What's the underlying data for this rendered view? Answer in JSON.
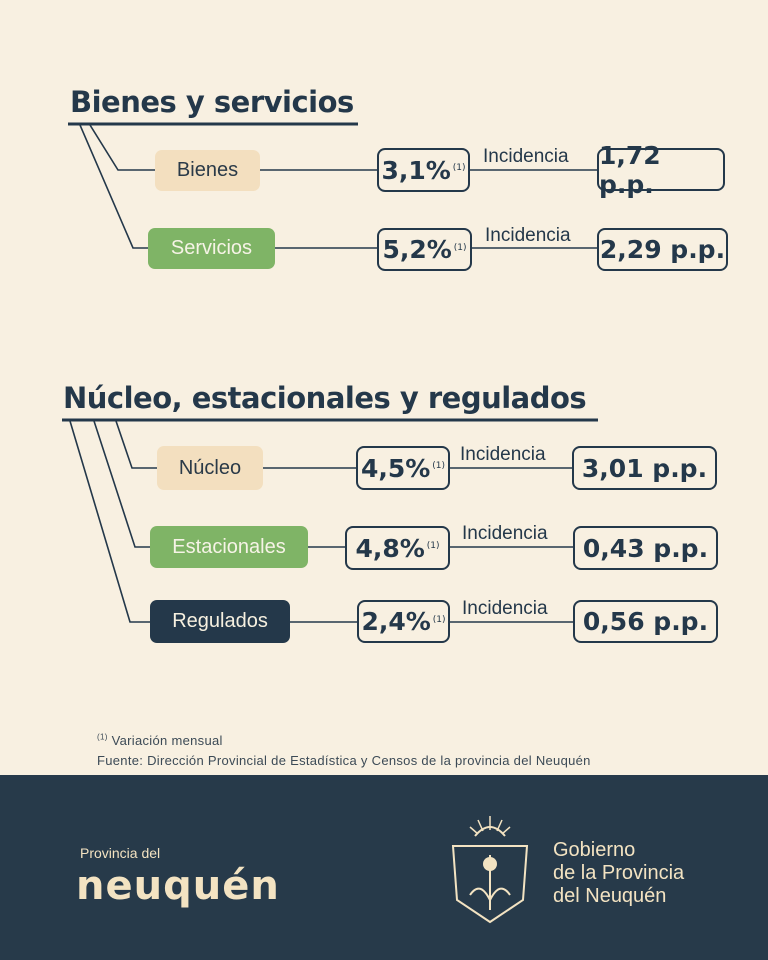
{
  "section1": {
    "title": "Bienes y servicios",
    "rows": [
      {
        "label": "Bienes",
        "pct": "3,1%",
        "note": "(1)",
        "incidence_label": "Incidencia",
        "value": "1,72 p.p."
      },
      {
        "label": "Servicios",
        "pct": "5,2%",
        "note": "(1)",
        "incidence_label": "Incidencia",
        "value": "2,29 p.p."
      }
    ]
  },
  "section2": {
    "title": "Núcleo, estacionales y regulados",
    "rows": [
      {
        "label": "Núcleo",
        "pct": "4,5%",
        "note": "(1)",
        "incidence_label": "Incidencia",
        "value": "3,01 p.p."
      },
      {
        "label": "Estacionales",
        "pct": "4,8%",
        "note": "(1)",
        "incidence_label": "Incidencia",
        "value": "0,43 p.p."
      },
      {
        "label": "Regulados",
        "pct": "2,4%",
        "note": "(1)",
        "incidence_label": "Incidencia",
        "value": "0,56 p.p."
      }
    ]
  },
  "footnote": {
    "marker": "(1)",
    "text": "Variación mensual",
    "source": "Fuente: Dirección Provincial de Estadística y Censos de la provincia del Neuquén"
  },
  "footer": {
    "brand_small": "Provincia del",
    "brand_big": "neuquén",
    "gov_line1": "Gobierno",
    "gov_line2": "de la Provincia",
    "gov_line3": "del Neuquén"
  },
  "colors": {
    "background": "#f8f0e1",
    "dark": "#24384a",
    "beige": "#f3dfbf",
    "green": "#7fb466"
  }
}
